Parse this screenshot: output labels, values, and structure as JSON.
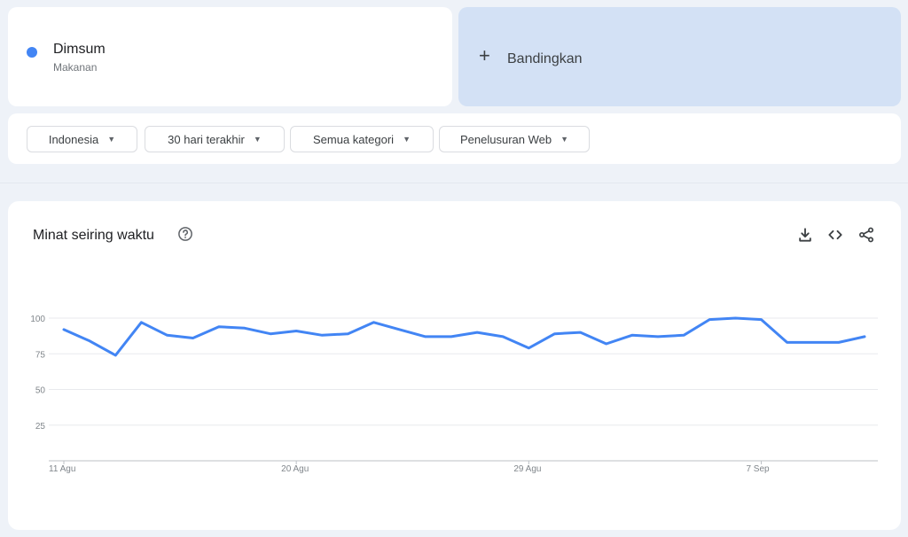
{
  "term": {
    "name": "Dimsum",
    "category": "Makanan",
    "color": "#4285f4"
  },
  "compare": {
    "label": "Bandingkan",
    "icon": "plus-icon"
  },
  "filters": [
    {
      "label": "Indonesia"
    },
    {
      "label": "30 hari terakhir"
    },
    {
      "label": "Semua kategori"
    },
    {
      "label": "Penelusuran Web"
    }
  ],
  "panel": {
    "title": "Minat seiring waktu",
    "icons": [
      "help-icon",
      "download-icon",
      "embed-code-icon",
      "share-icon"
    ]
  },
  "chart_data": {
    "type": "line",
    "title": "Minat seiring waktu",
    "x": [
      "2024-08-11",
      "2024-08-12",
      "2024-08-13",
      "2024-08-14",
      "2024-08-15",
      "2024-08-16",
      "2024-08-17",
      "2024-08-18",
      "2024-08-19",
      "2024-08-20",
      "2024-08-21",
      "2024-08-22",
      "2024-08-23",
      "2024-08-24",
      "2024-08-25",
      "2024-08-26",
      "2024-08-27",
      "2024-08-28",
      "2024-08-29",
      "2024-08-30",
      "2024-08-31",
      "2024-09-01",
      "2024-09-02",
      "2024-09-03",
      "2024-09-04",
      "2024-09-05",
      "2024-09-06",
      "2024-09-07",
      "2024-09-08",
      "2024-09-09",
      "2024-09-10",
      "2024-09-11"
    ],
    "series": [
      {
        "values": [
          92,
          84,
          74,
          97,
          88,
          86,
          94,
          93,
          89,
          91,
          88,
          89,
          97,
          92,
          87,
          87,
          90,
          87,
          79,
          89,
          90,
          82,
          88,
          87,
          88,
          99,
          100,
          99,
          83,
          83,
          83,
          87
        ],
        "color": "#4285f4"
      }
    ],
    "x_tick_labels": [
      "11 Agu",
      "20 Agu",
      "29 Agu",
      "7 Sep"
    ],
    "x_tick_index": [
      0,
      9,
      18,
      27
    ],
    "y_ticks": [
      25,
      50,
      75,
      100
    ],
    "ylim": [
      0,
      100
    ],
    "grid": true
  }
}
